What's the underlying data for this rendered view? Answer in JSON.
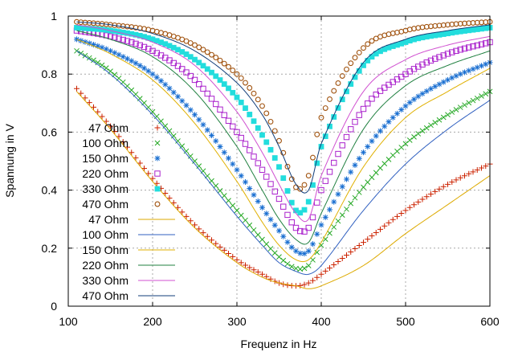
{
  "chart_data": {
    "type": "line",
    "xlabel": "Frequenz in Hz",
    "ylabel": "Spannung in V",
    "xlim": [
      100,
      600
    ],
    "ylim": [
      0,
      1
    ],
    "xticks": [
      100,
      200,
      300,
      400,
      500,
      600
    ],
    "yticks": [
      0,
      0.2,
      0.4,
      0.6,
      0.8,
      1
    ],
    "xtick_labels": [
      "100",
      "200",
      "300",
      "400",
      "500",
      "600"
    ],
    "ytick_labels": [
      "0",
      "0.2",
      "0.4",
      "0.6",
      "0.8",
      "1"
    ],
    "grid": true,
    "legend_position": "left",
    "series": [
      {
        "name": "47 Ohm",
        "style": "points",
        "marker": "plus",
        "color": "#cc2200",
        "x": [
          110,
          150,
          200,
          250,
          300,
          330,
          350,
          370,
          385,
          400,
          450,
          500,
          550,
          600
        ],
        "y": [
          0.75,
          0.62,
          0.44,
          0.28,
          0.16,
          0.11,
          0.08,
          0.07,
          0.08,
          0.11,
          0.22,
          0.33,
          0.42,
          0.49
        ]
      },
      {
        "name": "100 Ohm",
        "style": "points",
        "marker": "cross",
        "color": "#22a722",
        "x": [
          110,
          150,
          200,
          250,
          300,
          330,
          350,
          370,
          385,
          400,
          450,
          500,
          550,
          600
        ],
        "y": [
          0.88,
          0.81,
          0.67,
          0.5,
          0.33,
          0.23,
          0.17,
          0.13,
          0.14,
          0.21,
          0.41,
          0.56,
          0.66,
          0.74
        ]
      },
      {
        "name": "150 Ohm",
        "style": "points",
        "marker": "star",
        "color": "#1a6fd1",
        "x": [
          110,
          150,
          200,
          250,
          300,
          330,
          350,
          370,
          385,
          400,
          450,
          500,
          550,
          600
        ],
        "y": [
          0.92,
          0.88,
          0.8,
          0.66,
          0.47,
          0.34,
          0.26,
          0.19,
          0.19,
          0.28,
          0.53,
          0.69,
          0.78,
          0.84
        ]
      },
      {
        "name": "220 Ohm",
        "style": "points",
        "marker": "square-open",
        "color": "#aa22cc",
        "x": [
          110,
          150,
          200,
          250,
          300,
          330,
          350,
          370,
          385,
          400,
          450,
          500,
          550,
          600
        ],
        "y": [
          0.95,
          0.93,
          0.88,
          0.78,
          0.6,
          0.47,
          0.37,
          0.27,
          0.27,
          0.4,
          0.68,
          0.8,
          0.87,
          0.91
        ]
      },
      {
        "name": "330 Ohm",
        "style": "points",
        "marker": "square-filled",
        "color": "#22dddd",
        "x": [
          110,
          150,
          200,
          250,
          300,
          330,
          350,
          370,
          385,
          400,
          450,
          500,
          550,
          600
        ],
        "y": [
          0.96,
          0.95,
          0.92,
          0.85,
          0.72,
          0.59,
          0.48,
          0.33,
          0.36,
          0.55,
          0.83,
          0.91,
          0.94,
          0.96
        ]
      },
      {
        "name": "470 Ohm",
        "style": "points",
        "marker": "circle-open",
        "color": "#a0520e",
        "x": [
          110,
          150,
          200,
          250,
          300,
          330,
          350,
          370,
          385,
          400,
          450,
          500,
          550,
          600
        ],
        "y": [
          0.98,
          0.97,
          0.95,
          0.9,
          0.8,
          0.69,
          0.57,
          0.41,
          0.45,
          0.65,
          0.89,
          0.95,
          0.97,
          0.98
        ]
      },
      {
        "name": "47 Ohm",
        "style": "line",
        "color": "#ddaa00",
        "x": [
          110,
          150,
          200,
          250,
          300,
          330,
          350,
          370,
          385,
          400,
          450,
          500,
          550,
          600
        ],
        "y": [
          0.74,
          0.61,
          0.43,
          0.27,
          0.15,
          0.1,
          0.08,
          0.07,
          0.06,
          0.07,
          0.14,
          0.25,
          0.35,
          0.45
        ]
      },
      {
        "name": "100 Ohm",
        "style": "line",
        "color": "#3060c0",
        "x": [
          110,
          150,
          200,
          250,
          300,
          330,
          350,
          370,
          385,
          400,
          450,
          500,
          550,
          600
        ],
        "y": [
          0.88,
          0.8,
          0.66,
          0.49,
          0.31,
          0.21,
          0.15,
          0.12,
          0.11,
          0.14,
          0.33,
          0.49,
          0.61,
          0.71
        ]
      },
      {
        "name": "150 Ohm",
        "style": "line",
        "color": "#e0b000",
        "x": [
          110,
          150,
          200,
          250,
          300,
          330,
          350,
          370,
          385,
          400,
          450,
          500,
          550,
          600
        ],
        "y": [
          0.92,
          0.87,
          0.78,
          0.63,
          0.43,
          0.29,
          0.21,
          0.16,
          0.16,
          0.22,
          0.48,
          0.65,
          0.74,
          0.82
        ]
      },
      {
        "name": "220 Ohm",
        "style": "line",
        "color": "#208040",
        "x": [
          110,
          150,
          200,
          250,
          300,
          330,
          350,
          370,
          385,
          400,
          450,
          500,
          550,
          600
        ],
        "y": [
          0.95,
          0.92,
          0.86,
          0.74,
          0.55,
          0.4,
          0.3,
          0.23,
          0.22,
          0.32,
          0.61,
          0.76,
          0.83,
          0.88
        ]
      },
      {
        "name": "330 Ohm",
        "style": "line",
        "color": "#d050d0",
        "x": [
          110,
          150,
          200,
          250,
          300,
          330,
          350,
          370,
          385,
          400,
          450,
          500,
          550,
          600
        ],
        "y": [
          0.97,
          0.95,
          0.91,
          0.83,
          0.67,
          0.53,
          0.42,
          0.32,
          0.3,
          0.45,
          0.74,
          0.85,
          0.9,
          0.93
        ]
      },
      {
        "name": "470 Ohm",
        "style": "line",
        "color": "#103c78",
        "x": [
          110,
          150,
          200,
          250,
          300,
          330,
          350,
          370,
          385,
          400,
          450,
          500,
          550,
          600
        ],
        "y": [
          0.98,
          0.97,
          0.94,
          0.88,
          0.77,
          0.66,
          0.55,
          0.42,
          0.4,
          0.56,
          0.84,
          0.92,
          0.95,
          0.97
        ]
      }
    ]
  }
}
